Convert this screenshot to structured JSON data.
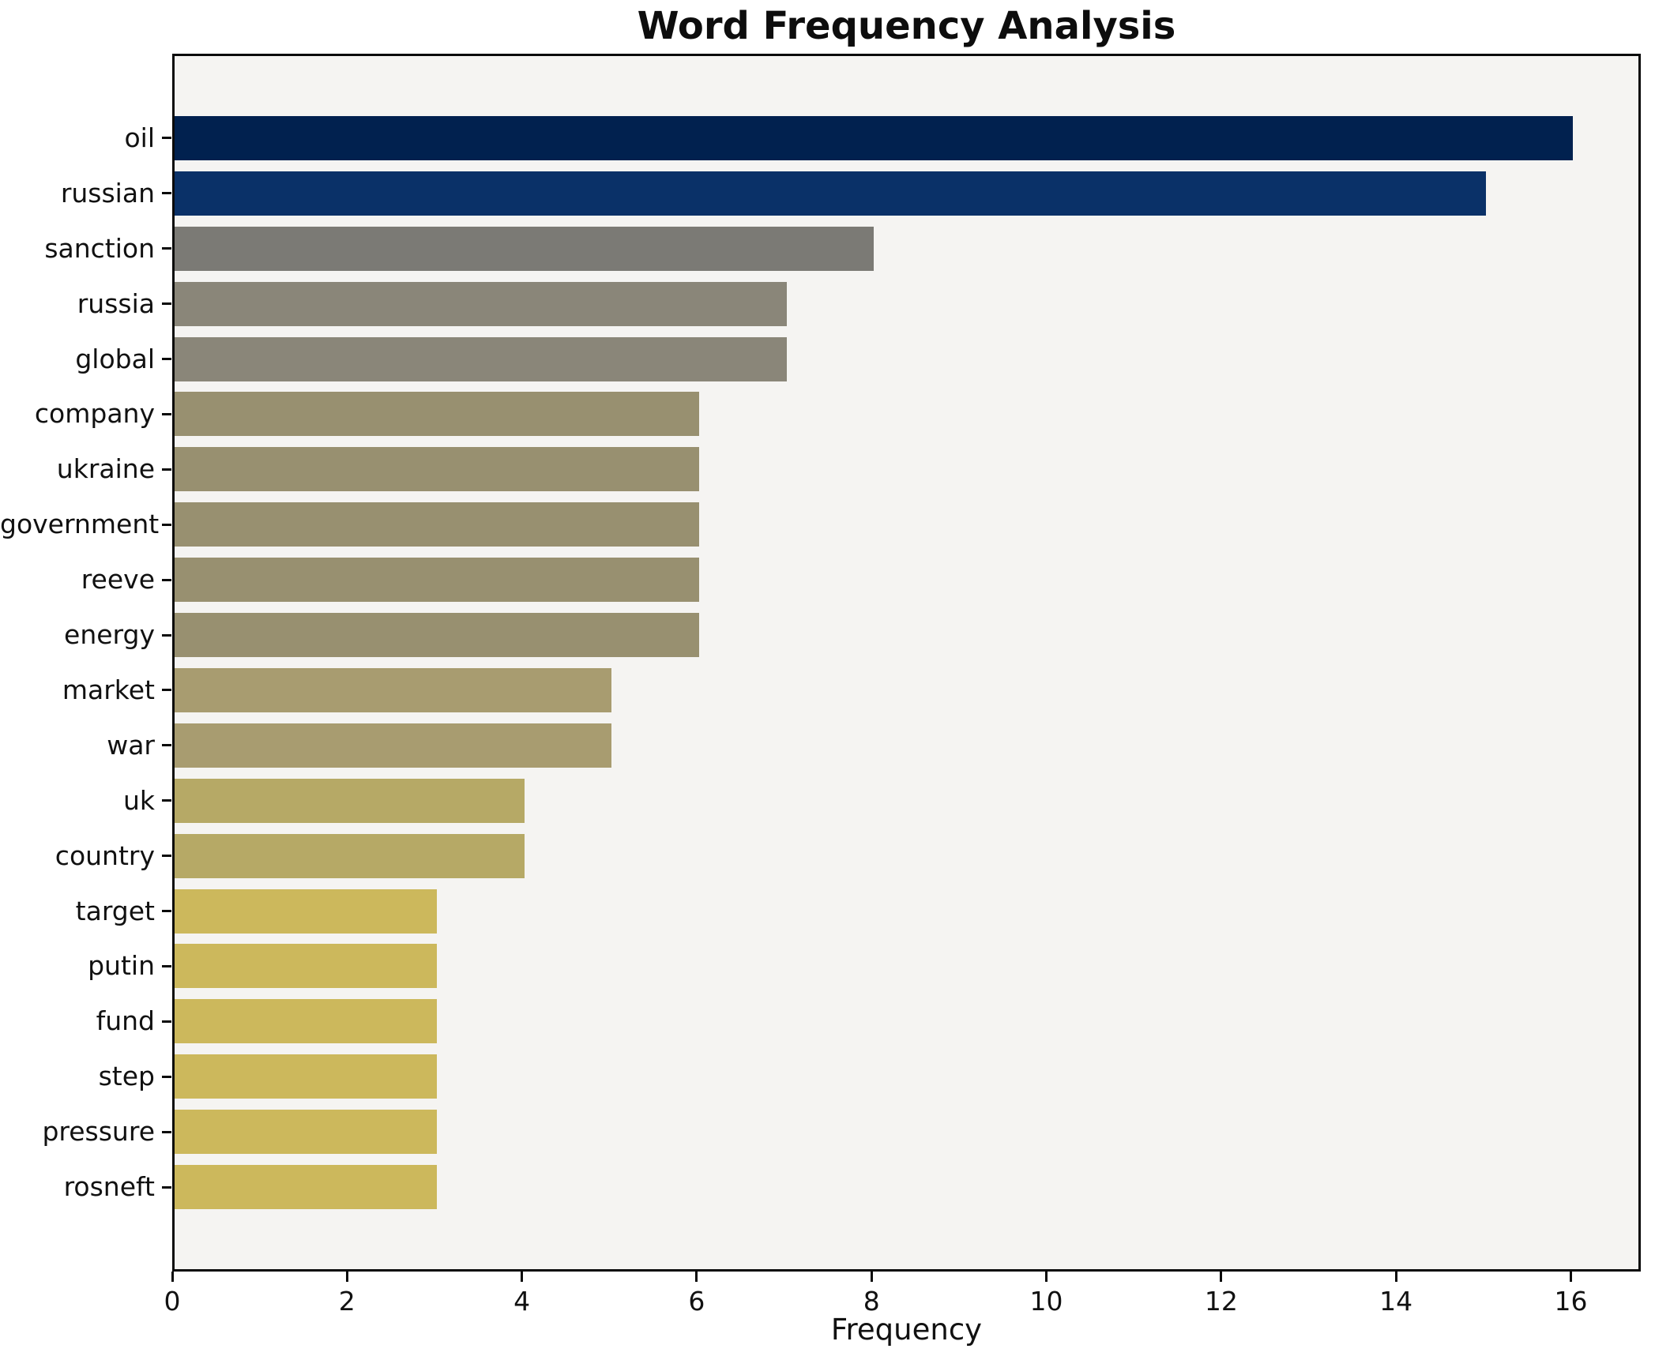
{
  "title": "Word Frequency Analysis",
  "chart_data": {
    "type": "bar",
    "orientation": "horizontal",
    "title": "Word Frequency Analysis",
    "xlabel": "Frequency",
    "ylabel": "",
    "xlim": [
      0,
      16.8
    ],
    "x_ticks": [
      0,
      2,
      4,
      6,
      8,
      10,
      12,
      14,
      16
    ],
    "grid": false,
    "legend": null,
    "palette": "cividis (highest frequency = dark navy, lowest = gold)",
    "plot_background": "#f5f4f2",
    "figure_background": "#ffffff",
    "spine_color": "#0a0a0a",
    "categories": [
      "oil",
      "russian",
      "sanction",
      "russia",
      "global",
      "company",
      "ukraine",
      "government",
      "reeve",
      "energy",
      "market",
      "war",
      "uk",
      "country",
      "target",
      "putin",
      "fund",
      "step",
      "pressure",
      "rosneft"
    ],
    "values": [
      16,
      15,
      8,
      7,
      7,
      6,
      6,
      6,
      6,
      6,
      5,
      5,
      4,
      4,
      3,
      3,
      3,
      3,
      3,
      3
    ],
    "bar_colors": [
      "#01214f",
      "#0a3168",
      "#7b7a75",
      "#8a8679",
      "#8a8679",
      "#989070",
      "#989070",
      "#989070",
      "#989070",
      "#989070",
      "#a89c70",
      "#a89c70",
      "#b6a966",
      "#b6a966",
      "#ccb85c",
      "#ccb85c",
      "#ccb85c",
      "#ccb85c",
      "#ccb85c",
      "#ccb85c"
    ]
  }
}
